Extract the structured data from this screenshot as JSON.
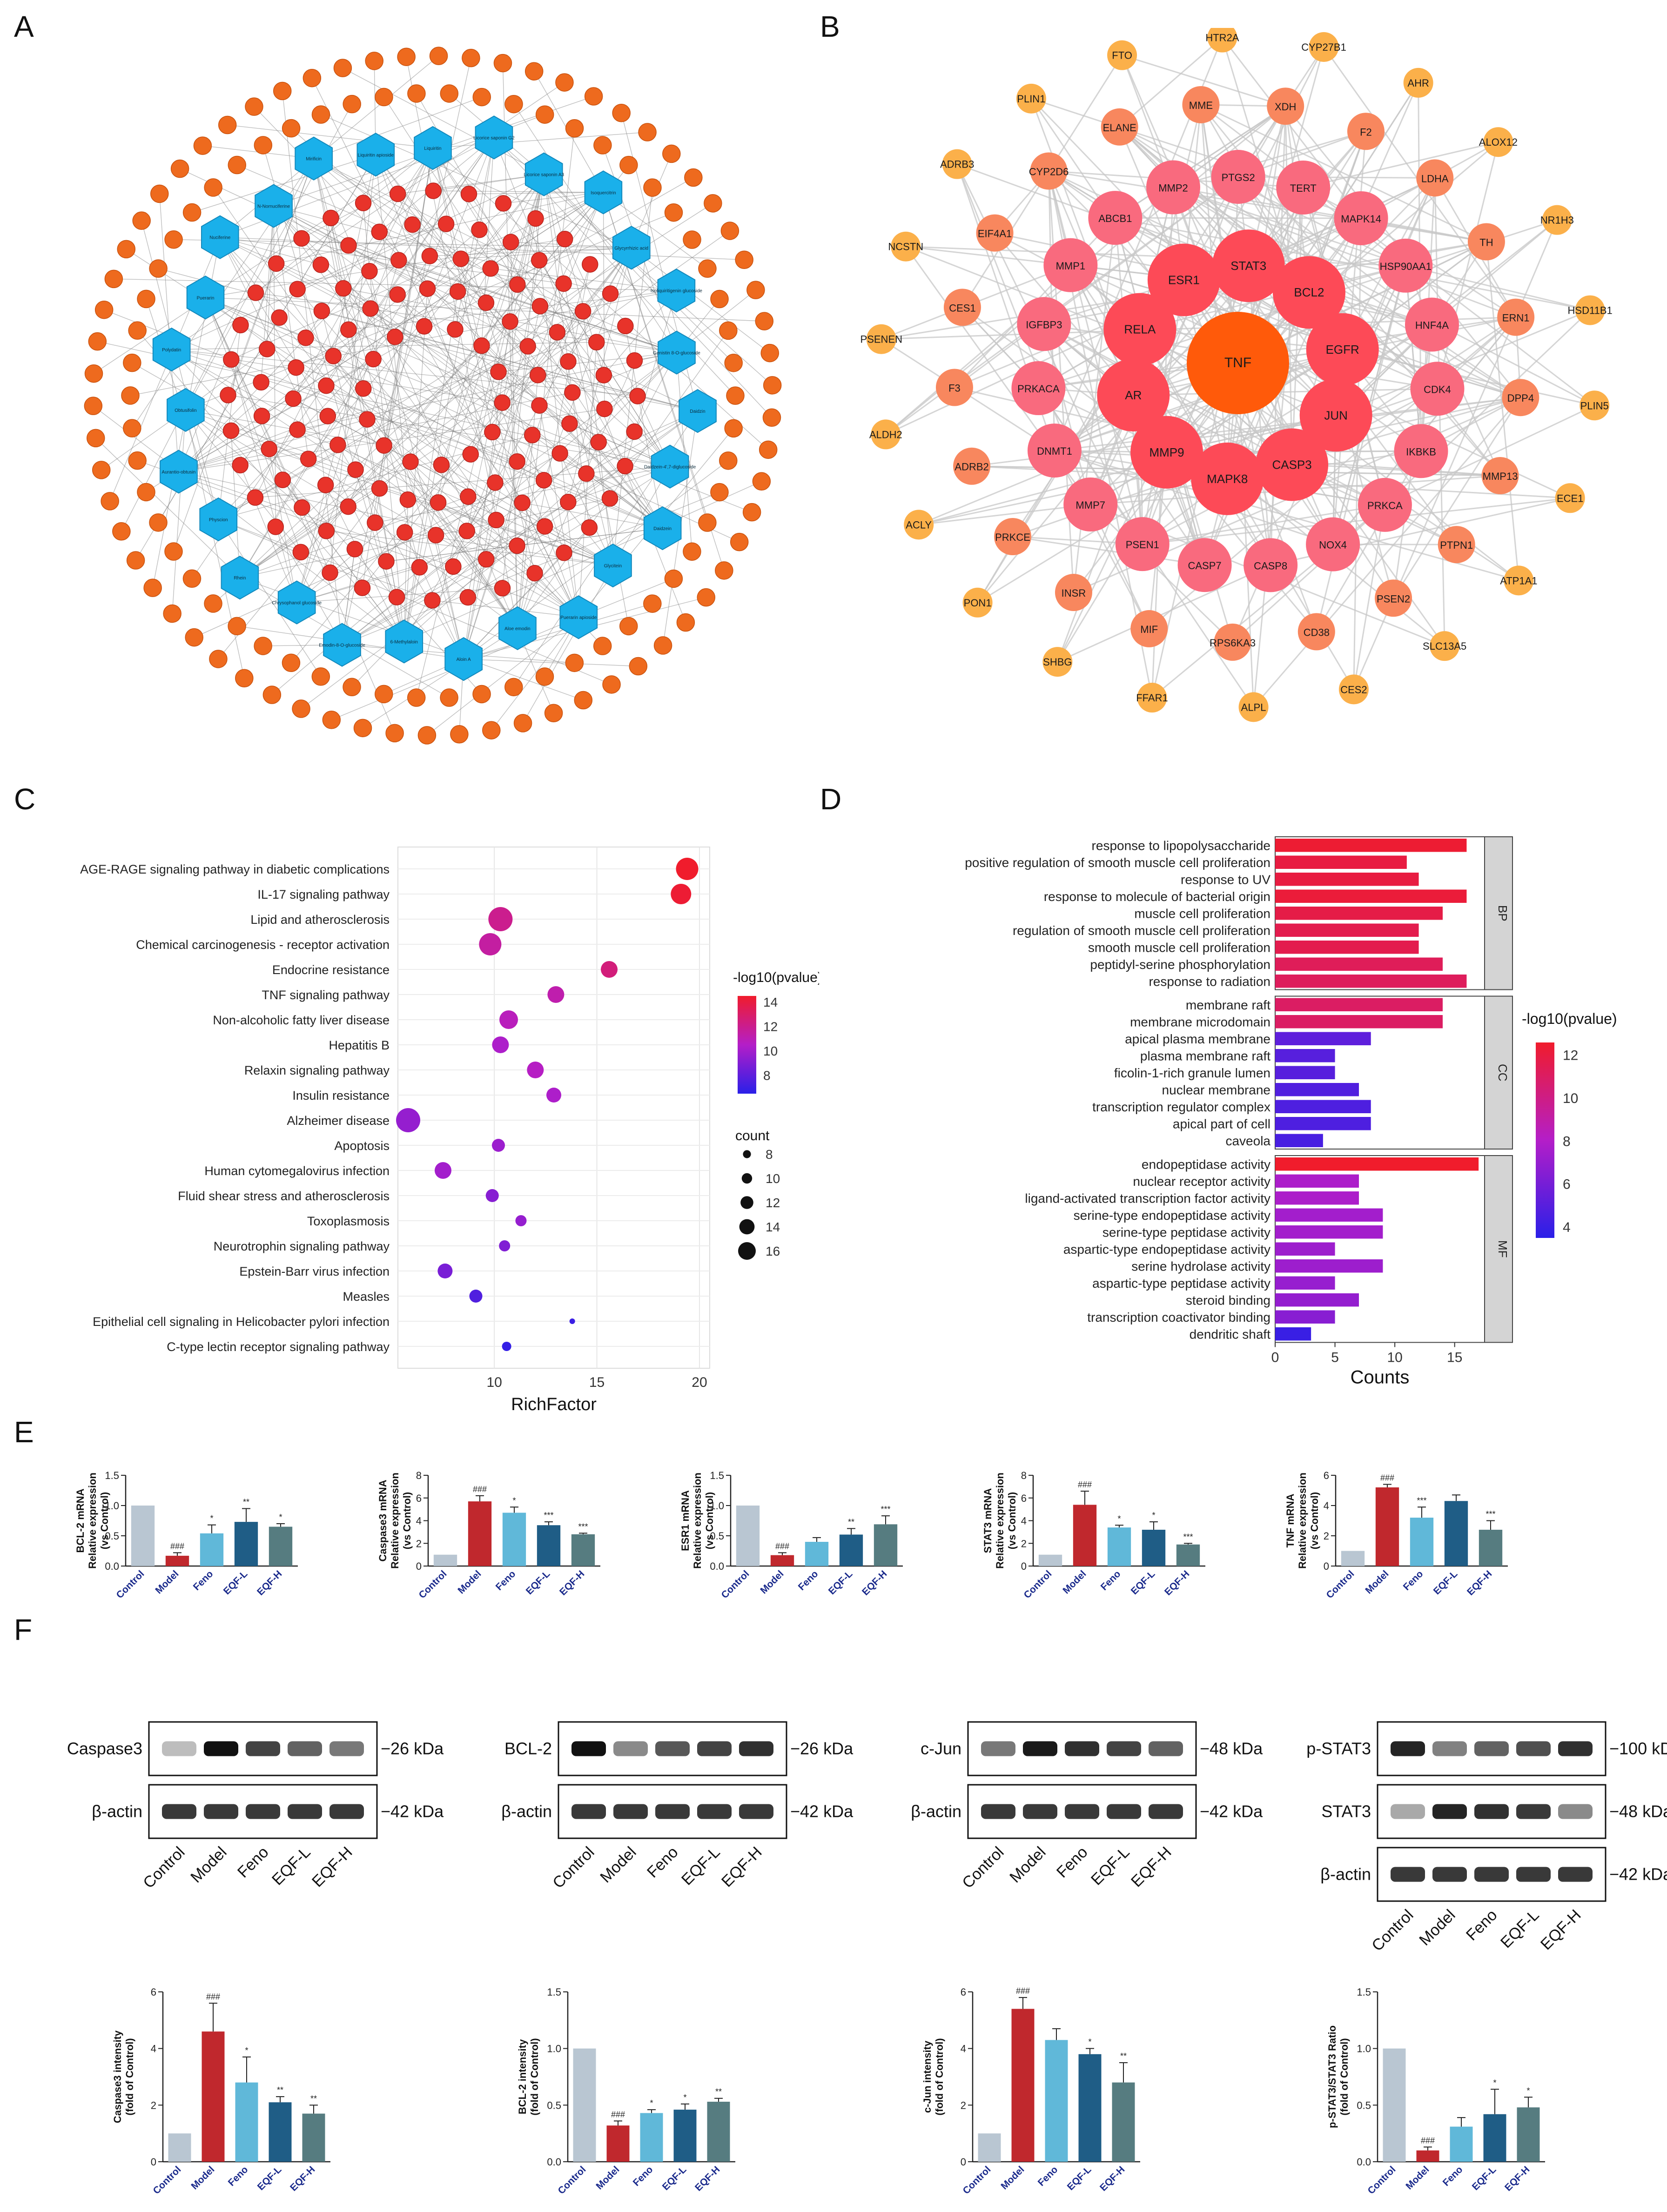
{
  "panel_letters": {
    "a": "A",
    "b": "B",
    "c": "C",
    "d": "D",
    "e": "E",
    "f": "F"
  },
  "network_a": {
    "compounds": [
      "Liquiritin",
      "Licorice saponin G2",
      "Licorice saponin A3",
      "Isoquercitrin",
      "Glycyrrhizic acid",
      "Isoliquiritigenin glucoside",
      "Genistin 8-O-glucoside",
      "Daidzin",
      "Daidzein-4',7-diglucoside",
      "Daidzein",
      "Glycitein",
      "Puerarin apioside",
      "Aloe emodin",
      "Aloin A",
      "6-Methylaloin",
      "Emodin-8-O-glucoside",
      "Chrysophanol glucoside",
      "Rhein",
      "Physcion",
      "Aurantio-obtusin",
      "Obtusifolin",
      "Polydatin",
      "Puerarin",
      "Nuciferine",
      "N-Nornuciferine",
      "Mirificin",
      "Liquiritin apioside"
    ]
  },
  "network_b": {
    "hub": "TNF",
    "ring1": [
      "ESR1",
      "STAT3",
      "BCL2",
      "EGFR",
      "JUN",
      "CASP3",
      "MAPK8",
      "MMP9",
      "AR",
      "RELA"
    ],
    "ring2": [
      "MMP2",
      "PTGS2",
      "TERT",
      "MAPK14",
      "HSP90AA1",
      "HNF4A",
      "CDK4",
      "IKBKB",
      "PRKCA",
      "NOX4",
      "CASP8",
      "CASP7",
      "PSEN1",
      "MMP7",
      "DNMT1",
      "PRKACA",
      "IGFBP3",
      "MMP1",
      "ABCB1"
    ],
    "ring3": [
      "CYP2D6",
      "ELANE",
      "MME",
      "XDH",
      "F2",
      "LDHA",
      "TH",
      "ERN1",
      "DPP4",
      "MMP13",
      "PTPN1",
      "PSEN2",
      "CD38",
      "RPS6KA3",
      "MIF",
      "INSR",
      "PRKCE",
      "ADRB2",
      "F3",
      "CES1",
      "EIF4A1"
    ],
    "ring4": [
      "FTO",
      "HTR2A",
      "CYP27B1",
      "AHR",
      "ALOX12",
      "NR1H3",
      "HSD11B1",
      "PLIN5",
      "ECE1",
      "ATP1A1",
      "SLC13A5",
      "CES2",
      "ALPL",
      "FFAR1",
      "SHBG",
      "PON1",
      "ACLY",
      "ALDH2",
      "PSENEN",
      "NCSTN",
      "ADRB3",
      "PLIN1"
    ]
  },
  "chart_data": [
    {
      "id": "C",
      "type": "scatter",
      "categories": [
        "AGE-RAGE signaling pathway in diabetic complications",
        "IL-17 signaling pathway",
        "Lipid and atherosclerosis",
        "Chemical carcinogenesis - receptor activation",
        "Endocrine resistance",
        "TNF signaling pathway",
        "Non-alcoholic fatty liver disease",
        "Hepatitis B",
        "Relaxin signaling pathway",
        "Insulin resistance",
        "Alzheimer disease",
        "Apoptosis",
        "Human cytomegalovirus infection",
        "Fluid shear stress and atherosclerosis",
        "Toxoplasmosis",
        "Neurotrophin signaling pathway",
        "Epstein-Barr virus infection",
        "Measles",
        "Epithelial cell signaling in Helicobacter pylori infection",
        "C-type lectin receptor signaling pathway"
      ],
      "richfactor": [
        19.4,
        19.1,
        10.3,
        9.8,
        15.6,
        13.0,
        10.7,
        10.3,
        12.0,
        12.9,
        5.8,
        10.2,
        7.5,
        9.9,
        11.3,
        10.5,
        7.6,
        9.1,
        13.8,
        10.6
      ],
      "count": [
        15,
        14,
        16,
        15,
        12,
        12,
        13,
        12,
        12,
        11,
        16,
        10,
        12,
        10,
        9,
        9,
        11,
        10,
        6,
        8
      ],
      "neglog10p": [
        14.5,
        14.3,
        12.0,
        11.5,
        12.5,
        11.2,
        10.8,
        10.3,
        10.6,
        10.3,
        9.6,
        9.8,
        10.0,
        9.2,
        9.6,
        9.0,
        8.8,
        7.6,
        7.0,
        6.8
      ],
      "xlabel": "RichFactor",
      "xticks": [
        10,
        15,
        20
      ],
      "xlim": [
        5.3,
        20.5
      ],
      "color_legend_title": "-log10(pvalue)",
      "color_ticks": [
        8,
        10,
        12,
        14
      ],
      "color_range": [
        6.5,
        14.5
      ],
      "size_legend_title": "count",
      "size_ticks": [
        8,
        10,
        12,
        14,
        16
      ],
      "grid": true
    },
    {
      "id": "D",
      "type": "bar",
      "groups": [
        {
          "label": "BP",
          "terms": [
            "response to lipopolysaccharide",
            "positive regulation of smooth muscle cell proliferation",
            "response to UV",
            "response to molecule of bacterial origin",
            "muscle cell proliferation",
            "regulation of smooth muscle cell proliferation",
            "smooth muscle cell proliferation",
            "peptidyl-serine phosphorylation",
            "response to radiation"
          ],
          "counts": [
            16,
            11,
            12,
            16,
            14,
            12,
            12,
            14,
            16
          ],
          "neglog10p": [
            12.4,
            12.0,
            12.0,
            12.2,
            11.8,
            11.6,
            11.6,
            11.3,
            11.2
          ]
        },
        {
          "label": "CC",
          "terms": [
            "membrane raft",
            "membrane microdomain",
            "apical plasma membrane",
            "plasma membrane raft",
            "ficolin-1-rich granule lumen",
            "nuclear membrane",
            "transcription regulator complex",
            "apical part of cell",
            "caveola"
          ],
          "counts": [
            14,
            14,
            8,
            5,
            5,
            7,
            8,
            8,
            4
          ],
          "neglog10p": [
            11.0,
            11.0,
            5.2,
            5.0,
            5.0,
            4.8,
            4.7,
            4.7,
            4.5
          ]
        },
        {
          "label": "MF",
          "terms": [
            "endopeptidase activity",
            "nuclear receptor activity",
            "ligand-activated transcription factor activity",
            "serine-type endopeptidase activity",
            "serine-type peptidase activity",
            "aspartic-type endopeptidase activity",
            "serine hydrolase activity",
            "aspartic-type peptidase activity",
            "steroid binding",
            "transcription coactivator binding",
            "dendritic shaft"
          ],
          "counts": [
            17,
            7,
            7,
            9,
            9,
            5,
            9,
            5,
            7,
            5,
            3
          ],
          "neglog10p": [
            12.6,
            7.8,
            7.8,
            7.5,
            7.5,
            7.3,
            7.3,
            7.1,
            7.0,
            6.6,
            4.0
          ]
        }
      ],
      "xlabel": "Counts",
      "xticks": [
        0,
        5,
        10,
        15
      ],
      "xlim": [
        0,
        17.5
      ],
      "color_legend_title": "-log10(pvalue)",
      "color_ticks": [
        4,
        6,
        8,
        10,
        12
      ],
      "color_range": [
        3.5,
        12.6
      ]
    }
  ],
  "e_charts": [
    {
      "ylabel": [
        "BCL-2 mRNA",
        "Relative expression",
        "(vs Control)"
      ],
      "ylim": [
        0,
        1.5
      ],
      "yticks": [
        "0.0",
        "0.5",
        "1.0",
        "1.5"
      ],
      "values": [
        1.0,
        0.17,
        0.54,
        0.73,
        0.65
      ],
      "errors": [
        0,
        0.05,
        0.14,
        0.22,
        0.05
      ],
      "marks": [
        "",
        "###",
        "*",
        "**",
        "*"
      ]
    },
    {
      "ylabel": [
        "Caspase3 mRNA",
        "Relative expression",
        "(vs Control)"
      ],
      "ylim": [
        0,
        8
      ],
      "yticks": [
        "0",
        "2",
        "4",
        "6",
        "8"
      ],
      "values": [
        1.0,
        5.7,
        4.7,
        3.6,
        2.8
      ],
      "errors": [
        0,
        0.5,
        0.5,
        0.3,
        0.1
      ],
      "marks": [
        "",
        "###",
        "*",
        "***",
        "***"
      ]
    },
    {
      "ylabel": [
        "ESR1 mRNA",
        "Relative expression",
        "(vs Control)"
      ],
      "ylim": [
        0,
        1.5
      ],
      "yticks": [
        "0.0",
        "0.5",
        "1.0",
        "1.5"
      ],
      "values": [
        1.0,
        0.18,
        0.4,
        0.52,
        0.69
      ],
      "errors": [
        0,
        0.04,
        0.07,
        0.1,
        0.14
      ],
      "marks": [
        "",
        "###",
        "",
        "**",
        "***"
      ]
    },
    {
      "ylabel": [
        "STAT3 mRNA",
        "Relative expression",
        "(vs Control)"
      ],
      "ylim": [
        0,
        8
      ],
      "yticks": [
        "0",
        "2",
        "4",
        "6",
        "8"
      ],
      "values": [
        1.0,
        5.4,
        3.4,
        3.2,
        1.9
      ],
      "errors": [
        0,
        1.2,
        0.2,
        0.7,
        0.1
      ],
      "marks": [
        "",
        "###",
        "*",
        "*",
        "***"
      ]
    },
    {
      "ylabel": [
        "TNF mRNA",
        "Relative expression",
        "(vs Control)"
      ],
      "ylim": [
        0,
        6
      ],
      "yticks": [
        "0",
        "2",
        "4",
        "6"
      ],
      "values": [
        1.0,
        5.2,
        3.2,
        4.3,
        2.4
      ],
      "errors": [
        0,
        0.2,
        0.7,
        0.4,
        0.6
      ],
      "marks": [
        "",
        "###",
        "***",
        "",
        "***"
      ]
    }
  ],
  "f_charts": [
    {
      "ylabel": [
        "Caspase3 intensity",
        "(fold of Control)"
      ],
      "ylim": [
        0,
        6
      ],
      "yticks": [
        "0",
        "2",
        "4",
        "6"
      ],
      "values": [
        1.0,
        4.6,
        2.8,
        2.1,
        1.7
      ],
      "errors": [
        0,
        1.0,
        0.9,
        0.2,
        0.3
      ],
      "marks": [
        "",
        "###",
        "*",
        "**",
        "**"
      ]
    },
    {
      "ylabel": [
        "BCL-2 intensity",
        "(fold of Control)"
      ],
      "ylim": [
        0,
        1.5
      ],
      "yticks": [
        "0.0",
        "0.5",
        "1.0",
        "1.5"
      ],
      "values": [
        1.0,
        0.32,
        0.43,
        0.46,
        0.53
      ],
      "errors": [
        0,
        0.04,
        0.03,
        0.05,
        0.03
      ],
      "marks": [
        "",
        "###",
        "*",
        "*",
        "**"
      ]
    },
    {
      "ylabel": [
        "c-Jun intensity",
        "(fold of Control)"
      ],
      "ylim": [
        0,
        6
      ],
      "yticks": [
        "0",
        "2",
        "4",
        "6"
      ],
      "values": [
        1.0,
        5.4,
        4.3,
        3.8,
        2.8
      ],
      "errors": [
        0,
        0.4,
        0.4,
        0.2,
        0.7
      ],
      "marks": [
        "",
        "###",
        "",
        "*",
        "**"
      ]
    },
    {
      "ylabel": [
        "p-STAT3/STAT3 Ratio",
        "(fold of Control)"
      ],
      "ylim": [
        0,
        1.5
      ],
      "yticks": [
        "0.0",
        "0.5",
        "1.0",
        "1.5"
      ],
      "values": [
        1.0,
        0.1,
        0.31,
        0.42,
        0.48
      ],
      "errors": [
        0,
        0.03,
        0.08,
        0.22,
        0.09
      ],
      "marks": [
        "",
        "###",
        "",
        "*",
        "*"
      ]
    }
  ],
  "groups": [
    "Control",
    "Model",
    "Feno",
    "EQF-L",
    "EQF-H"
  ],
  "bar_colors": [
    "#b9c6d2",
    "#c0282d",
    "#60b8d9",
    "#1f5d86",
    "#567c80"
  ],
  "blots": [
    {
      "rows": [
        {
          "label": "Caspase3",
          "kda": "−26 kDa",
          "int": [
            0.15,
            1.0,
            0.75,
            0.6,
            0.5
          ]
        },
        {
          "label": "β-actin",
          "kda": "−42 kDa",
          "int": [
            0.8,
            0.8,
            0.8,
            0.8,
            0.8
          ]
        }
      ]
    },
    {
      "rows": [
        {
          "label": "BCL-2",
          "kda": "−26 kDa",
          "int": [
            1.0,
            0.4,
            0.65,
            0.75,
            0.85
          ]
        },
        {
          "label": "β-actin",
          "kda": "−42 kDa",
          "int": [
            0.8,
            0.8,
            0.8,
            0.8,
            0.8
          ]
        }
      ]
    },
    {
      "rows": [
        {
          "label": "c-Jun",
          "kda": "−48 kDa",
          "int": [
            0.5,
            0.95,
            0.85,
            0.75,
            0.6
          ]
        },
        {
          "label": "β-actin",
          "kda": "−42 kDa",
          "int": [
            0.8,
            0.8,
            0.8,
            0.8,
            0.8
          ]
        }
      ]
    },
    {
      "rows": [
        {
          "label": "p-STAT3",
          "kda": "−100 kDa",
          "int": [
            0.9,
            0.45,
            0.6,
            0.7,
            0.85
          ]
        },
        {
          "label": "STAT3",
          "kda": "−48 kDa",
          "int": [
            0.25,
            0.9,
            0.85,
            0.8,
            0.4
          ]
        },
        {
          "label": "β-actin",
          "kda": "−42 kDa",
          "int": [
            0.8,
            0.8,
            0.8,
            0.8,
            0.8
          ]
        }
      ]
    }
  ]
}
